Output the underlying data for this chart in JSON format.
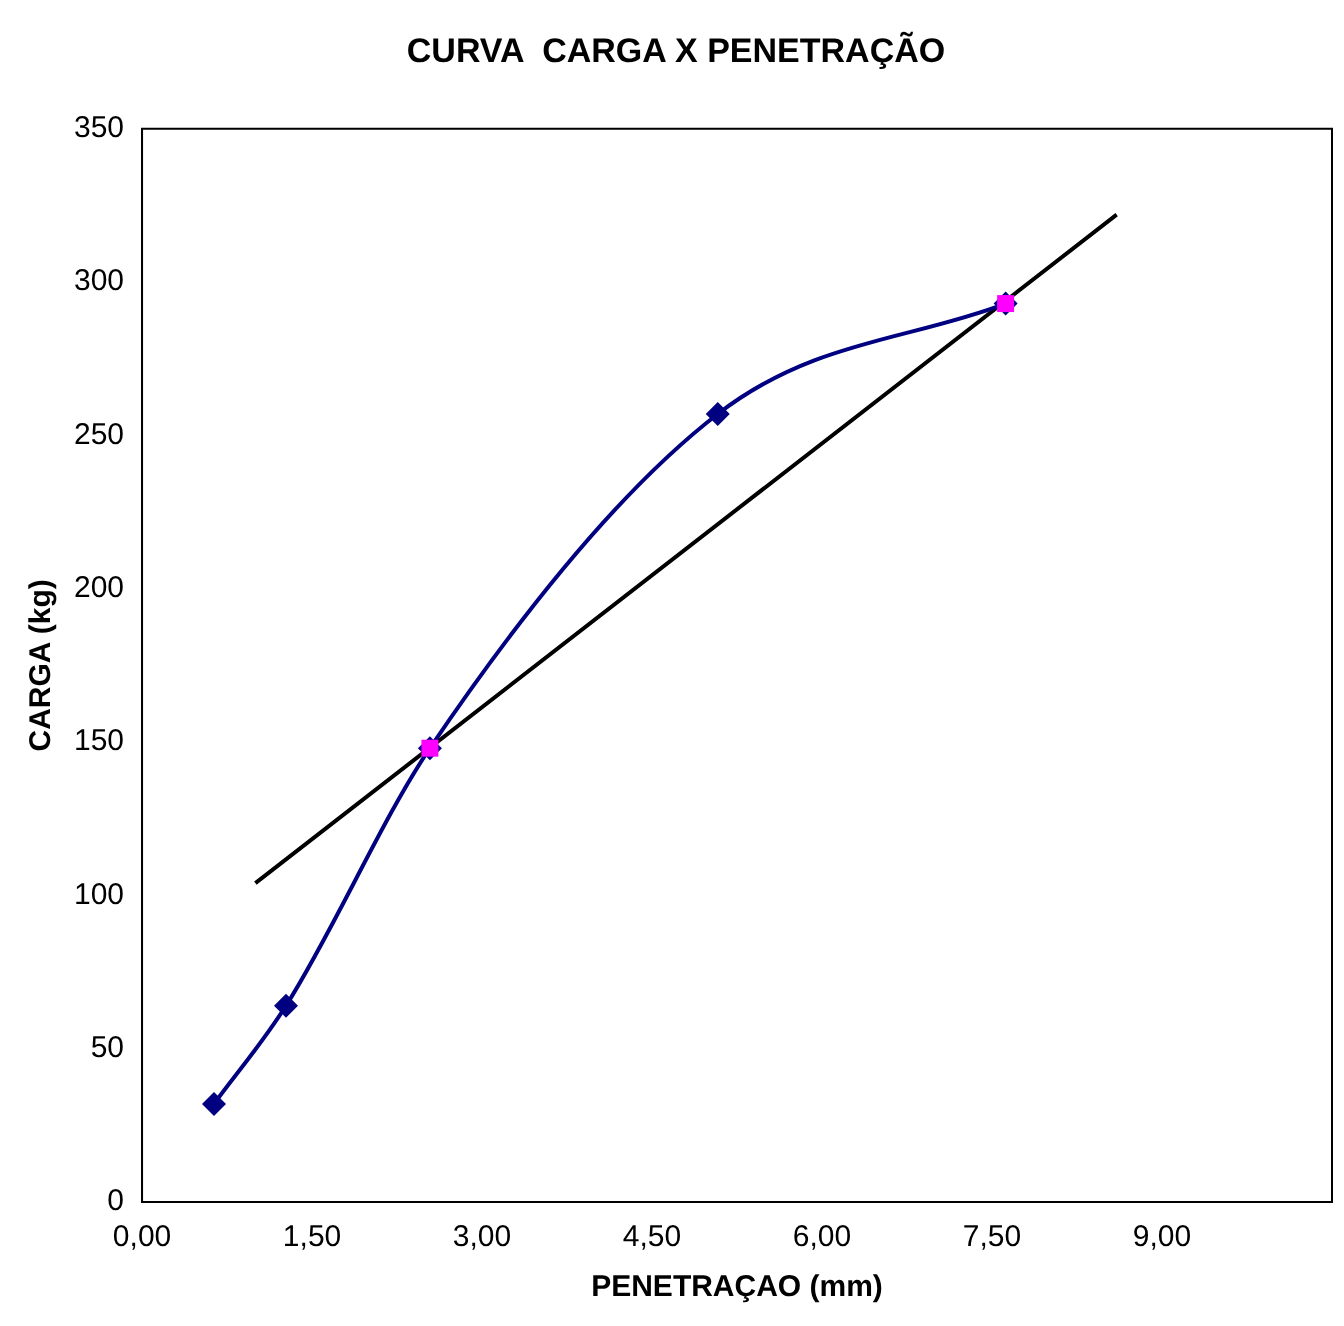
{
  "chart_data": {
    "type": "line",
    "title": "CURVA  CARGA X PENETRAÇÃO",
    "xlabel": "PENETRAÇAO (mm)",
    "ylabel": "CARGA (kg)",
    "xlim": [
      0,
      10.5
    ],
    "xticks": [
      {
        "value": 0,
        "label": "0,00"
      },
      {
        "value": 1.5,
        "label": "1,50"
      },
      {
        "value": 3,
        "label": "3,00"
      },
      {
        "value": 4.5,
        "label": "4,50"
      },
      {
        "value": 6,
        "label": "6,00"
      },
      {
        "value": 7.5,
        "label": "7,50"
      },
      {
        "value": 9,
        "label": "9,00"
      }
    ],
    "ylim": [
      0,
      350
    ],
    "yticks": [
      0,
      50,
      100,
      150,
      200,
      250,
      300,
      350
    ],
    "grid": false,
    "legend": false,
    "series": [
      {
        "color": "#000080",
        "marker": "diamond",
        "x": [
          0.635,
          1.27,
          2.54,
          5.08,
          7.62
        ],
        "values": [
          32,
          64,
          148,
          257,
          293
        ]
      },
      {
        "type": "scatter",
        "color": "#ff00ff",
        "marker": "square",
        "x": [
          2.54,
          7.62
        ],
        "values": [
          148,
          293
        ]
      },
      {
        "color": "#000000",
        "marker": "none",
        "x": [
          1.0,
          8.6
        ],
        "values": [
          104,
          322
        ]
      }
    ]
  }
}
